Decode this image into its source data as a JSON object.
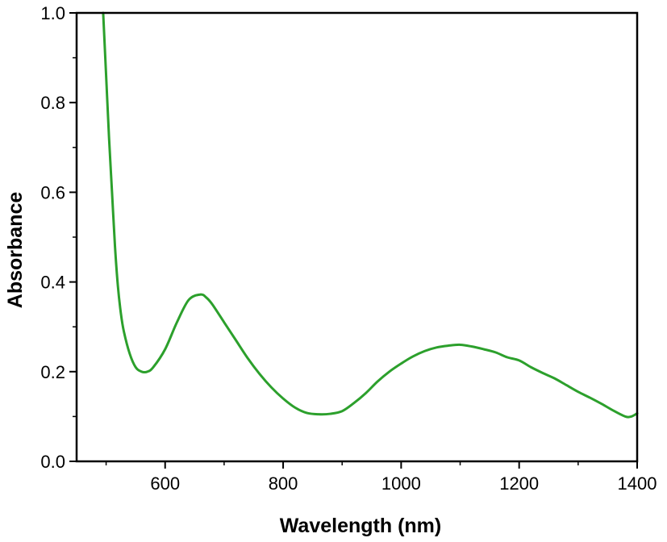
{
  "chart_data": {
    "type": "line",
    "title": "",
    "xlabel": "Wavelength (nm)",
    "ylabel": "Absorbance",
    "xlim": [
      450,
      1400
    ],
    "ylim": [
      0.0,
      1.0
    ],
    "xticks": [
      600,
      800,
      1000,
      1200,
      1400
    ],
    "xtick_labels": [
      "600",
      "800",
      "1000",
      "1200",
      "1400"
    ],
    "yticks": [
      0.0,
      0.2,
      0.4,
      0.6,
      0.8,
      1.0
    ],
    "ytick_labels": [
      "0.0",
      "0.2",
      "0.4",
      "0.6",
      "0.8",
      "1.0"
    ],
    "grid": false,
    "legend": "none",
    "series": [
      {
        "color": "#2ca02c",
        "x": [
          495,
          500,
          505,
          510,
          515,
          520,
          525,
          530,
          540,
          550,
          560,
          570,
          580,
          600,
          620,
          640,
          660,
          670,
          680,
          700,
          720,
          740,
          760,
          780,
          800,
          820,
          840,
          860,
          880,
          900,
          920,
          940,
          960,
          980,
          1000,
          1020,
          1040,
          1060,
          1080,
          1100,
          1120,
          1140,
          1160,
          1180,
          1200,
          1220,
          1240,
          1260,
          1280,
          1300,
          1320,
          1340,
          1360,
          1380,
          1390,
          1400
        ],
        "values": [
          1.0,
          0.86,
          0.72,
          0.6,
          0.48,
          0.39,
          0.33,
          0.29,
          0.24,
          0.21,
          0.2,
          0.2,
          0.21,
          0.25,
          0.31,
          0.36,
          0.372,
          0.365,
          0.35,
          0.31,
          0.27,
          0.23,
          0.195,
          0.165,
          0.14,
          0.12,
          0.108,
          0.105,
          0.106,
          0.112,
          0.13,
          0.152,
          0.178,
          0.2,
          0.218,
          0.234,
          0.246,
          0.254,
          0.258,
          0.26,
          0.256,
          0.25,
          0.243,
          0.232,
          0.225,
          0.21,
          0.197,
          0.185,
          0.17,
          0.155,
          0.142,
          0.128,
          0.113,
          0.1,
          0.1,
          0.107
        ]
      }
    ]
  }
}
